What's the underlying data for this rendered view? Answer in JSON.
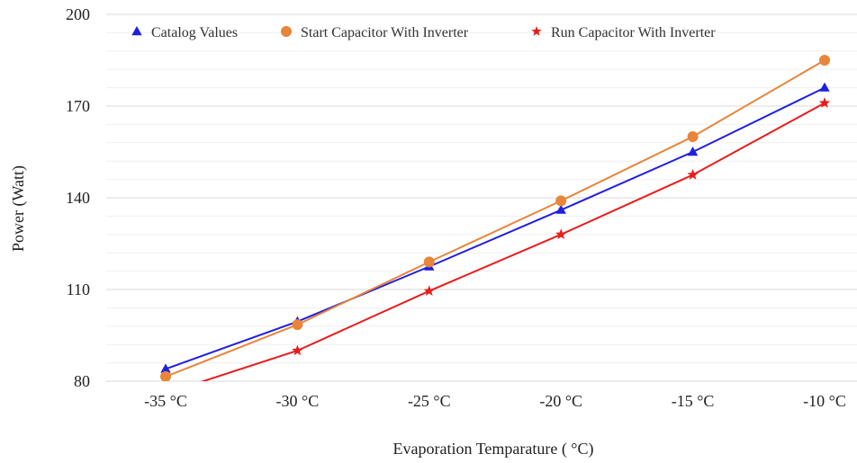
{
  "chart_data": {
    "type": "line",
    "xlabel": "Evaporation Temparature ( °C)",
    "ylabel": "Power (Watt)",
    "categories": [
      "-35 °C",
      "-30 °C",
      "-25 °C",
      "-20 °C",
      "-15 °C",
      "-10 °C"
    ],
    "x": [
      -35,
      -30,
      -25,
      -20,
      -15,
      -10
    ],
    "ylim": [
      80,
      200
    ],
    "yticks": [
      80,
      110,
      140,
      170,
      200
    ],
    "grid": true,
    "legend_position": "top",
    "series": [
      {
        "name": "Catalog Values",
        "marker": "triangle",
        "color": "#1f1fe0",
        "values": [
          84,
          99.5,
          117.5,
          136,
          155,
          176
        ]
      },
      {
        "name": "Start Capacitor With Inverter",
        "marker": "circle",
        "color": "#e8853a",
        "values": [
          81.5,
          98.5,
          119,
          139,
          160,
          185
        ]
      },
      {
        "name": "Run Capacitor With Inverter",
        "marker": "star",
        "color": "#e81c1c",
        "values": [
          76,
          90,
          109.5,
          128,
          147.5,
          171
        ]
      }
    ]
  }
}
